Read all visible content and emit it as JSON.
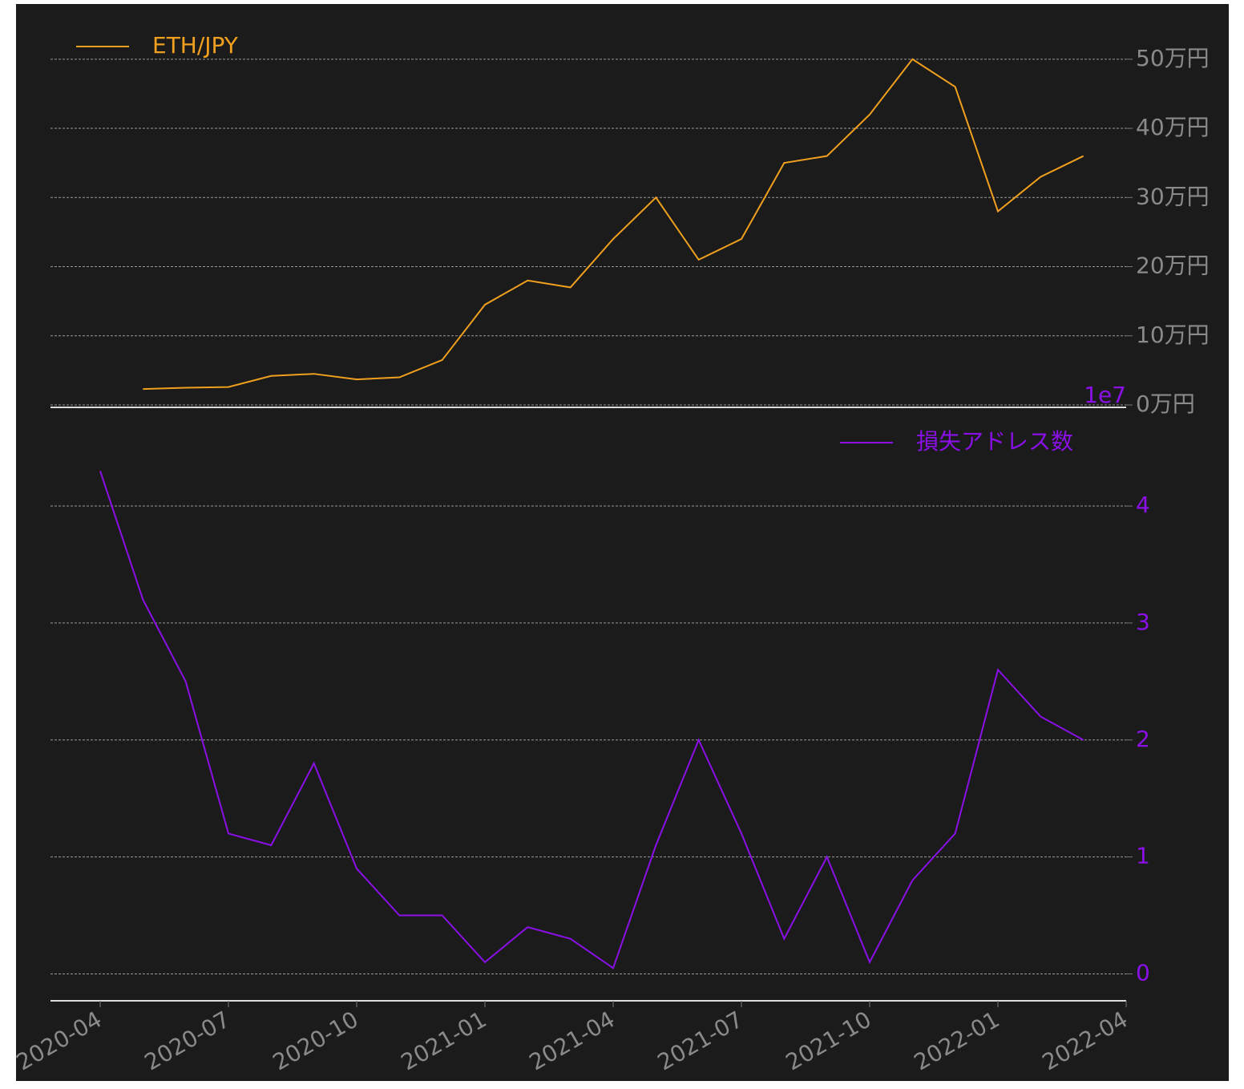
{
  "chart_data": [
    {
      "type": "line",
      "x": [
        "2020-04",
        "2020-05",
        "2020-06",
        "2020-07",
        "2020-08",
        "2020-09",
        "2020-10",
        "2020-11",
        "2020-12",
        "2021-01",
        "2021-02",
        "2021-03",
        "2021-04",
        "2021-05",
        "2021-06",
        "2021-07",
        "2021-08",
        "2021-09",
        "2021-10",
        "2021-11",
        "2021-12",
        "2022-01",
        "2022-02",
        "2022-03"
      ],
      "series": [
        {
          "name": "ETH/JPY",
          "color": "#f0a01e",
          "values": [
            null,
            23000,
            25000,
            26000,
            42000,
            45000,
            37000,
            40000,
            65000,
            145000,
            180000,
            170000,
            240000,
            300000,
            210000,
            240000,
            350000,
            360000,
            420000,
            500000,
            460000,
            280000,
            330000,
            360000
          ]
        }
      ],
      "ylim": [
        0,
        574000
      ],
      "yticks": [
        {
          "value": 0,
          "label": "0万円"
        },
        {
          "value": 100000,
          "label": "10万円"
        },
        {
          "value": 200000,
          "label": "20万円"
        },
        {
          "value": 300000,
          "label": "30万円"
        },
        {
          "value": 400000,
          "label": "40万円"
        },
        {
          "value": 500000,
          "label": "50万円"
        }
      ],
      "grid": true,
      "legend": "upper-left"
    },
    {
      "type": "line",
      "x": [
        "2020-04",
        "2020-05",
        "2020-06",
        "2020-07",
        "2020-08",
        "2020-09",
        "2020-10",
        "2020-11",
        "2020-12",
        "2021-01",
        "2021-02",
        "2021-03",
        "2021-04",
        "2021-05",
        "2021-06",
        "2021-07",
        "2021-08",
        "2021-09",
        "2021-10",
        "2021-11",
        "2021-12",
        "2022-01",
        "2022-02",
        "2022-03"
      ],
      "series": [
        {
          "name": "損失アドレス数",
          "color": "#8b10e8",
          "values": [
            4.3,
            3.2,
            2.5,
            1.2,
            1.1,
            1.8,
            0.9,
            0.5,
            0.5,
            0.1,
            0.4,
            0.3,
            0.05,
            1.1,
            2.0,
            1.2,
            0.3,
            1.0,
            0.1,
            0.8,
            1.2,
            2.6,
            2.2,
            2.0
          ]
        }
      ],
      "ylim": [
        -0.23,
        4.83
      ],
      "yticks": [
        0,
        1,
        2,
        3,
        4
      ],
      "y_offset_label": "1e7",
      "xlim": [
        "2020-04",
        "2022-04"
      ],
      "xticks": [
        "2020-04",
        "2020-07",
        "2020-10",
        "2021-01",
        "2021-04",
        "2021-07",
        "2021-10",
        "2022-01",
        "2022-04"
      ],
      "grid": true,
      "legend": "upper-right"
    }
  ]
}
